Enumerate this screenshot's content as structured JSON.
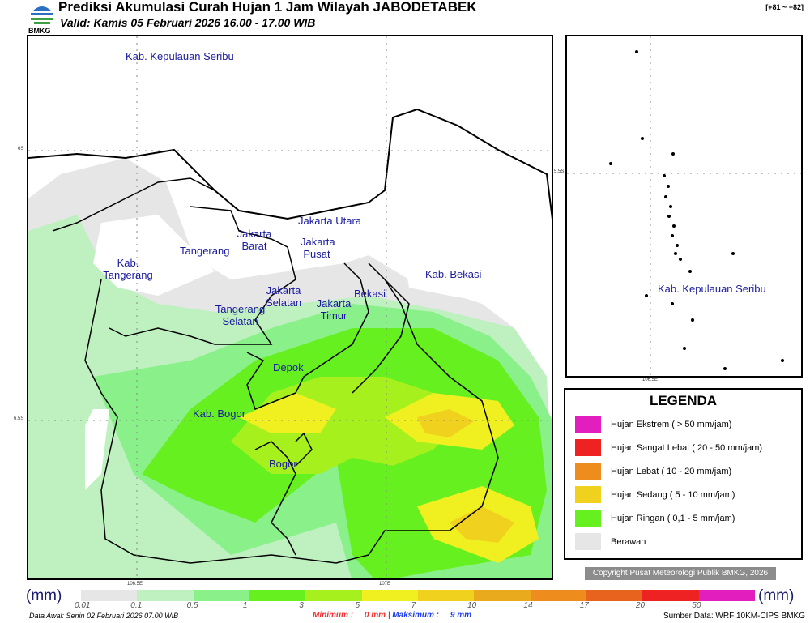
{
  "header": {
    "title": "Prediksi Akumulasi Curah Hujan 1 Jam Wilayah JABODETABEK",
    "valid": "Valid: Kamis 05 Februari 2026 16.00 - 17.00 WIB",
    "code": "[+81 ~ +82]",
    "logo_text": "BMKG"
  },
  "map": {
    "regions": [
      "Kab. Kepulauan Seribu",
      "Jakarta Utara",
      "Jakarta Barat",
      "Jakarta Pusat",
      "Tangerang",
      "Kab. Tangerang",
      "Jakarta Selatan",
      "Jakarta Timur",
      "Bekasi",
      "Kab. Bekasi",
      "Tangerang Selatan",
      "Depok",
      "Kab. Bogor",
      "Bogor"
    ],
    "ticks": {
      "lat1": "6S",
      "lat2": "6.5S",
      "lon1": "106.5E",
      "lon2": "107E"
    }
  },
  "inset": {
    "region": "Kab. Kepulauan Seribu",
    "lat": "5.5S",
    "lon": "106.5E"
  },
  "legend": {
    "title": "LEGENDA",
    "items": [
      {
        "label": "Hujan Ekstrem ( > 50 mm/jam)",
        "color": "#e21ebe"
      },
      {
        "label": "Hujan Sangat Lebat ( 20 - 50 mm/jam)",
        "color": "#ee2222"
      },
      {
        "label": "Hujan Lebat ( 10 - 20 mm/jam)",
        "color": "#ee8c1e"
      },
      {
        "label": "Hujan Sedang ( 5 - 10 mm/jam)",
        "color": "#f0d21e"
      },
      {
        "label": "Hujan Ringan ( 0,1 - 5 mm/jam)",
        "color": "#66f020"
      },
      {
        "label": "Berawan",
        "color": "#e6e6e6"
      }
    ]
  },
  "copyright": "Copyright Pusat Meteorologi Publik BMKG, 2026",
  "colorbar": {
    "unit": "(mm)",
    "labels": [
      "0.01",
      "0.1",
      "0.5",
      "1",
      "3",
      "5",
      "7",
      "10",
      "14",
      "17",
      "20",
      "50"
    ],
    "colors": [
      "#e6e6e6",
      "#bff0bf",
      "#8af08a",
      "#66f020",
      "#a6f01e",
      "#f0f020",
      "#f0d21e",
      "#eaaa1e",
      "#ee8c1e",
      "#e8641e",
      "#ee2222",
      "#e21ebe"
    ]
  },
  "footer": {
    "data_awal": "Data Awal: Senin 02 Februari 2026 07.00 WIB",
    "min_label": "Minimum :",
    "min_value": "0 mm",
    "sep": "|",
    "max_label": "Maksimum :",
    "max_value": "9 mm",
    "source": "Sumber Data: WRF 10KM-CIPS BMKG"
  }
}
